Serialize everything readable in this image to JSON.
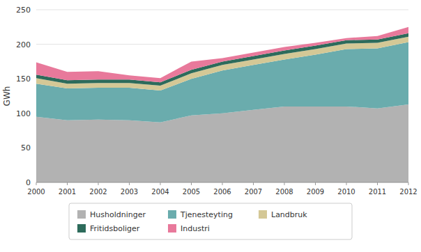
{
  "chart_data": {
    "type": "area",
    "stacked": true,
    "x": [
      2000,
      2001,
      2002,
      2003,
      2004,
      2005,
      2006,
      2007,
      2008,
      2009,
      2010,
      2011,
      2012
    ],
    "series": [
      {
        "name": "Husholdninger",
        "color": "#b2b2b2",
        "values": [
          95,
          90,
          91,
          90,
          87,
          97,
          100,
          105,
          110,
          110,
          110,
          107,
          113
        ]
      },
      {
        "name": "Tjenesteyting",
        "color": "#6aacad",
        "values": [
          48,
          46,
          46,
          47,
          46,
          53,
          62,
          65,
          68,
          75,
          83,
          87,
          90
        ]
      },
      {
        "name": "Landbruk",
        "color": "#d4c896",
        "values": [
          8,
          7,
          7,
          7,
          7,
          8,
          8,
          8,
          8,
          8,
          8,
          8,
          8
        ]
      },
      {
        "name": "Fritidsboliger",
        "color": "#2d6b5b",
        "values": [
          5,
          5,
          5,
          5,
          5,
          5,
          5,
          5,
          5,
          5,
          5,
          5,
          5
        ]
      },
      {
        "name": "Industri",
        "color": "#e8799b",
        "values": [
          18,
          12,
          12,
          6,
          6,
          12,
          5,
          5,
          5,
          4,
          3,
          5,
          9
        ]
      }
    ],
    "ylabel": "GWh",
    "xlim": [
      2000,
      2012
    ],
    "xticks": [
      2000,
      2001,
      2002,
      2003,
      2004,
      2005,
      2006,
      2007,
      2008,
      2009,
      2010,
      2011,
      2012
    ],
    "ylim": [
      0,
      250
    ],
    "yticks": [
      0,
      50,
      100,
      150,
      200,
      250
    ],
    "grid": true,
    "legend": "bottom"
  }
}
